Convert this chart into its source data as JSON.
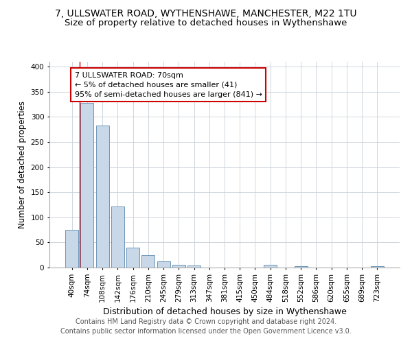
{
  "title": "7, ULLSWATER ROAD, WYTHENSHAWE, MANCHESTER, M22 1TU",
  "subtitle": "Size of property relative to detached houses in Wythenshawe",
  "xlabel": "Distribution of detached houses by size in Wythenshawe",
  "ylabel": "Number of detached properties",
  "footer_line1": "Contains HM Land Registry data © Crown copyright and database right 2024.",
  "footer_line2": "Contains public sector information licensed under the Open Government Licence v3.0.",
  "categories": [
    "40sqm",
    "74sqm",
    "108sqm",
    "142sqm",
    "176sqm",
    "210sqm",
    "245sqm",
    "279sqm",
    "313sqm",
    "347sqm",
    "381sqm",
    "415sqm",
    "450sqm",
    "484sqm",
    "518sqm",
    "552sqm",
    "586sqm",
    "620sqm",
    "655sqm",
    "689sqm",
    "723sqm"
  ],
  "values": [
    75,
    328,
    283,
    122,
    39,
    24,
    12,
    5,
    4,
    0,
    0,
    0,
    0,
    5,
    0,
    3,
    0,
    0,
    0,
    0,
    3
  ],
  "bar_color": "#c8d8e8",
  "bar_edge_color": "#5a8ab0",
  "grid_color": "#c8d0d8",
  "annotation_line1": "7 ULLSWATER ROAD: 70sqm",
  "annotation_line2": "← 5% of detached houses are smaller (41)",
  "annotation_line3": "95% of semi-detached houses are larger (841) →",
  "annotation_box_color": "#ffffff",
  "annotation_box_edge_color": "#cc0000",
  "vline_x": 0.5,
  "ylim": [
    0,
    410
  ],
  "yticks": [
    0,
    50,
    100,
    150,
    200,
    250,
    300,
    350,
    400
  ],
  "title_fontsize": 10,
  "subtitle_fontsize": 9.5,
  "xlabel_fontsize": 9,
  "ylabel_fontsize": 8.5,
  "tick_fontsize": 7.5,
  "annotation_fontsize": 8,
  "footer_fontsize": 7
}
